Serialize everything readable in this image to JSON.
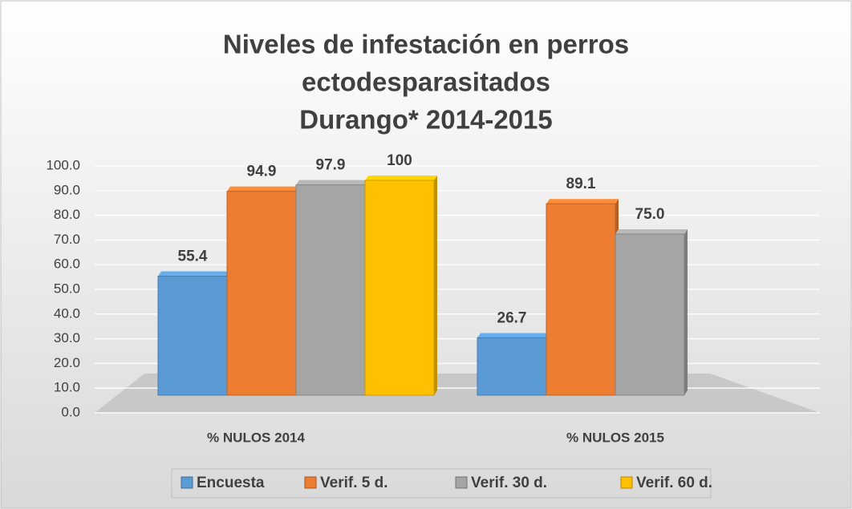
{
  "chart_data": {
    "type": "bar3d",
    "title": [
      "Niveles de infestación en perros",
      "ectodesparasitados",
      "Durango* 2014-2015"
    ],
    "categories": [
      "% NULOS 2014",
      "% NULOS 2015"
    ],
    "series": [
      {
        "name": "Encuesta",
        "color": "#5b9bd5",
        "values": [
          55.4,
          26.7
        ]
      },
      {
        "name": "Verif. 5 d.",
        "color": "#ed7d31",
        "values": [
          94.9,
          89.1
        ]
      },
      {
        "name": "Verif. 30 d.",
        "color": "#a5a5a5",
        "values": [
          97.9,
          75
        ],
        "value_labels": [
          "97.9",
          "75.0"
        ]
      },
      {
        "name": "Verif. 60 d.",
        "color": "#ffc000",
        "values": [
          100,
          null
        ]
      }
    ],
    "ylim": [
      0,
      100
    ],
    "yticks": [
      {
        "value": 0,
        "label": "0.0"
      },
      {
        "value": 10,
        "label": "10.0"
      },
      {
        "value": 20,
        "label": "20.0"
      },
      {
        "value": 30,
        "label": "30.0"
      },
      {
        "value": 40,
        "label": "40.0"
      },
      {
        "value": 50,
        "label": "50.0"
      },
      {
        "value": 60,
        "label": "60.0"
      },
      {
        "value": 70,
        "label": "70.0"
      },
      {
        "value": 80,
        "label": "80.0"
      },
      {
        "value": 90,
        "label": "90.0"
      },
      {
        "value": 100,
        "label": "100.0"
      }
    ],
    "grid": true,
    "legend": "bottom"
  }
}
